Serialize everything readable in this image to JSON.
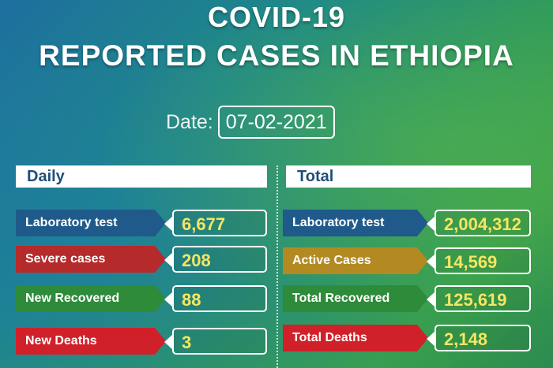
{
  "header": {
    "title_line1": "COVID-19",
    "title_line2": "REPORTED CASES IN ETHIOPIA",
    "date_label": "Date:",
    "date_value": "07-02-2021"
  },
  "daily": {
    "heading": "Daily",
    "rows": [
      {
        "label": "Laboratory test",
        "value": "6,677",
        "color": "#1f5a8a"
      },
      {
        "label": "Severe cases",
        "value": "208",
        "color": "#b52a2a"
      },
      {
        "label": "New Recovered",
        "value": "88",
        "color": "#2e8b3a"
      },
      {
        "label": "New Deaths",
        "value": "3",
        "color": "#d0202a"
      }
    ]
  },
  "total": {
    "heading": "Total",
    "rows": [
      {
        "label": "Laboratory test",
        "value": "2,004,312",
        "color": "#1f5a8a"
      },
      {
        "label": "Active Cases",
        "value": "14,569",
        "color": "#b38a22"
      },
      {
        "label": "Total Recovered",
        "value": "125,619",
        "color": "#2e8b3a"
      },
      {
        "label": "Total Deaths",
        "value": "2,148",
        "color": "#d0202a"
      }
    ]
  },
  "colors": {
    "value_text": "#f5e663",
    "heading_text": "#1f4e78"
  }
}
